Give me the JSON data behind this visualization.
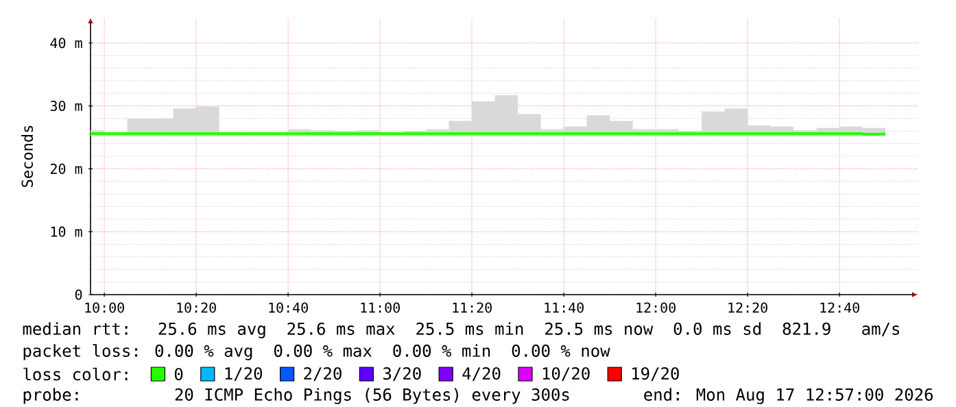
{
  "chart_data": {
    "type": "step",
    "ylabel": "Seconds",
    "x": [
      9.95,
      10,
      10.0833,
      10.1667,
      10.25,
      10.3333,
      10.4167,
      10.5,
      10.5833,
      10.6667,
      10.75,
      10.8333,
      10.9167,
      11,
      11.0833,
      11.1667,
      11.25,
      11.3333,
      11.4167,
      11.5,
      11.5833,
      11.6667,
      11.75,
      11.8333,
      11.9167,
      12,
      12.0833,
      12.1667,
      12.25,
      12.3333,
      12.4167,
      12.5,
      12.5833,
      12.6667,
      12.75,
      12.8333
    ],
    "series": [
      {
        "name": "0",
        "color": "#26ff00",
        "values": [
          25.6,
          25.6,
          25.6,
          25.6,
          25.6,
          25.6,
          25.6,
          25.6,
          25.6,
          25.6,
          25.6,
          25.6,
          25.6,
          25.6,
          25.6,
          25.6,
          25.6,
          25.6,
          25.6,
          25.6,
          25.6,
          25.6,
          25.6,
          25.6,
          25.6,
          25.6,
          25.6,
          25.6,
          25.6,
          25.6,
          25.6,
          25.6,
          25.6,
          25.6,
          25.5,
          25.5
        ],
        "lower": [
          25.2,
          25.2,
          25.2,
          25.2,
          25.2,
          25.2,
          25.2,
          25.2,
          25.2,
          25.2,
          25.2,
          25.2,
          25.2,
          25.2,
          25.2,
          25.2,
          25.2,
          25.2,
          25.2,
          25.2,
          25.2,
          25.2,
          25.2,
          25.2,
          25.2,
          25.2,
          25.2,
          25.2,
          25.2,
          25.2,
          25.2,
          25.2,
          25.2,
          25.2,
          25.2,
          25.2
        ],
        "upper": [
          26.1,
          25.7,
          28.0,
          28.0,
          29.6,
          29.9,
          25.8,
          25.8,
          25.8,
          26.3,
          26.1,
          26.0,
          26.1,
          25.8,
          26.0,
          26.3,
          27.6,
          30.7,
          31.7,
          28.7,
          26.3,
          26.7,
          28.5,
          27.6,
          26.3,
          26.3,
          26.0,
          29.1,
          29.6,
          26.9,
          26.7,
          26.1,
          26.5,
          26.7,
          26.5,
          26.5
        ]
      },
      {
        "name": "1/20",
        "color": "#00b8ff",
        "values": [
          null,
          null,
          null,
          null,
          null,
          null,
          null,
          null,
          null,
          null,
          null,
          null,
          null,
          null,
          null,
          null,
          null,
          null,
          null,
          null,
          null,
          null,
          null,
          null,
          null,
          null,
          null,
          null,
          null,
          null,
          null,
          null,
          null,
          null,
          null,
          null
        ]
      },
      {
        "name": "2/20",
        "color": "#0059ff",
        "values": [
          null,
          null,
          null,
          null,
          null,
          null,
          null,
          null,
          null,
          null,
          null,
          null,
          null,
          null,
          null,
          null,
          null,
          null,
          null,
          null,
          null,
          null,
          null,
          null,
          null,
          null,
          null,
          null,
          null,
          null,
          null,
          null,
          null,
          null,
          null,
          null
        ]
      },
      {
        "name": "3/20",
        "color": "#5e00ff",
        "values": [
          null,
          null,
          null,
          null,
          null,
          null,
          null,
          null,
          null,
          null,
          null,
          null,
          null,
          null,
          null,
          null,
          null,
          null,
          null,
          null,
          null,
          null,
          null,
          null,
          null,
          null,
          null,
          null,
          null,
          null,
          null,
          null,
          null,
          null,
          null,
          null
        ]
      },
      {
        "name": "4/20",
        "color": "#7e00ff",
        "values": [
          null,
          null,
          null,
          null,
          null,
          null,
          null,
          null,
          null,
          null,
          null,
          null,
          null,
          null,
          null,
          null,
          null,
          null,
          null,
          null,
          null,
          null,
          null,
          null,
          null,
          null,
          null,
          null,
          null,
          null,
          null,
          null,
          null,
          null,
          null,
          null
        ]
      },
      {
        "name": "10/20",
        "color": "#dd00ff",
        "values": [
          null,
          null,
          null,
          null,
          null,
          null,
          null,
          null,
          null,
          null,
          null,
          null,
          null,
          null,
          null,
          null,
          null,
          null,
          null,
          null,
          null,
          null,
          null,
          null,
          null,
          null,
          null,
          null,
          null,
          null,
          null,
          null,
          null,
          null,
          null,
          null
        ]
      },
      {
        "name": "19/20",
        "color": "#ff0000",
        "values": [
          null,
          null,
          null,
          null,
          null,
          null,
          null,
          null,
          null,
          null,
          null,
          null,
          null,
          null,
          null,
          null,
          null,
          null,
          null,
          null,
          null,
          null,
          null,
          null,
          null,
          null,
          null,
          null,
          null,
          null,
          null,
          null,
          null,
          null,
          null,
          null
        ]
      }
    ],
    "xlim": [
      9.95,
      12.95
    ],
    "xticks": [
      {
        "value": 10,
        "label": "10:00"
      },
      {
        "value": 10.3333,
        "label": "10:20"
      },
      {
        "value": 10.6667,
        "label": "10:40"
      },
      {
        "value": 11,
        "label": "11:00"
      },
      {
        "value": 11.3333,
        "label": "11:20"
      },
      {
        "value": 11.6667,
        "label": "11:40"
      },
      {
        "value": 12,
        "label": "12:00"
      },
      {
        "value": 12.3333,
        "label": "12:20"
      },
      {
        "value": 12.6667,
        "label": "12:40"
      }
    ],
    "ylim": [
      0,
      44
    ],
    "yticks": [
      0,
      {
        "value": 10,
        "label": "10 m"
      },
      {
        "value": 20,
        "label": "20 m"
      },
      {
        "value": 30,
        "label": "30 m"
      },
      {
        "value": 40,
        "label": "40 m"
      }
    ],
    "grid": true,
    "legend": "bottom",
    "legend_title": "loss color:",
    "annotations": [
      "median rtt:  25.6 ms avg  25.6 ms max  25.5 ms min  25.5 ms now  0.0 ms sd  821.9   am/s",
      "packet loss: 0.00 % avg  0.00 % max  0.00 % min  0.00 % now",
      "probe:       20 ICMP Echo Pings (56 Bytes) every 300s",
      "end: Mon Aug 17 12:57:00 2026"
    ]
  }
}
